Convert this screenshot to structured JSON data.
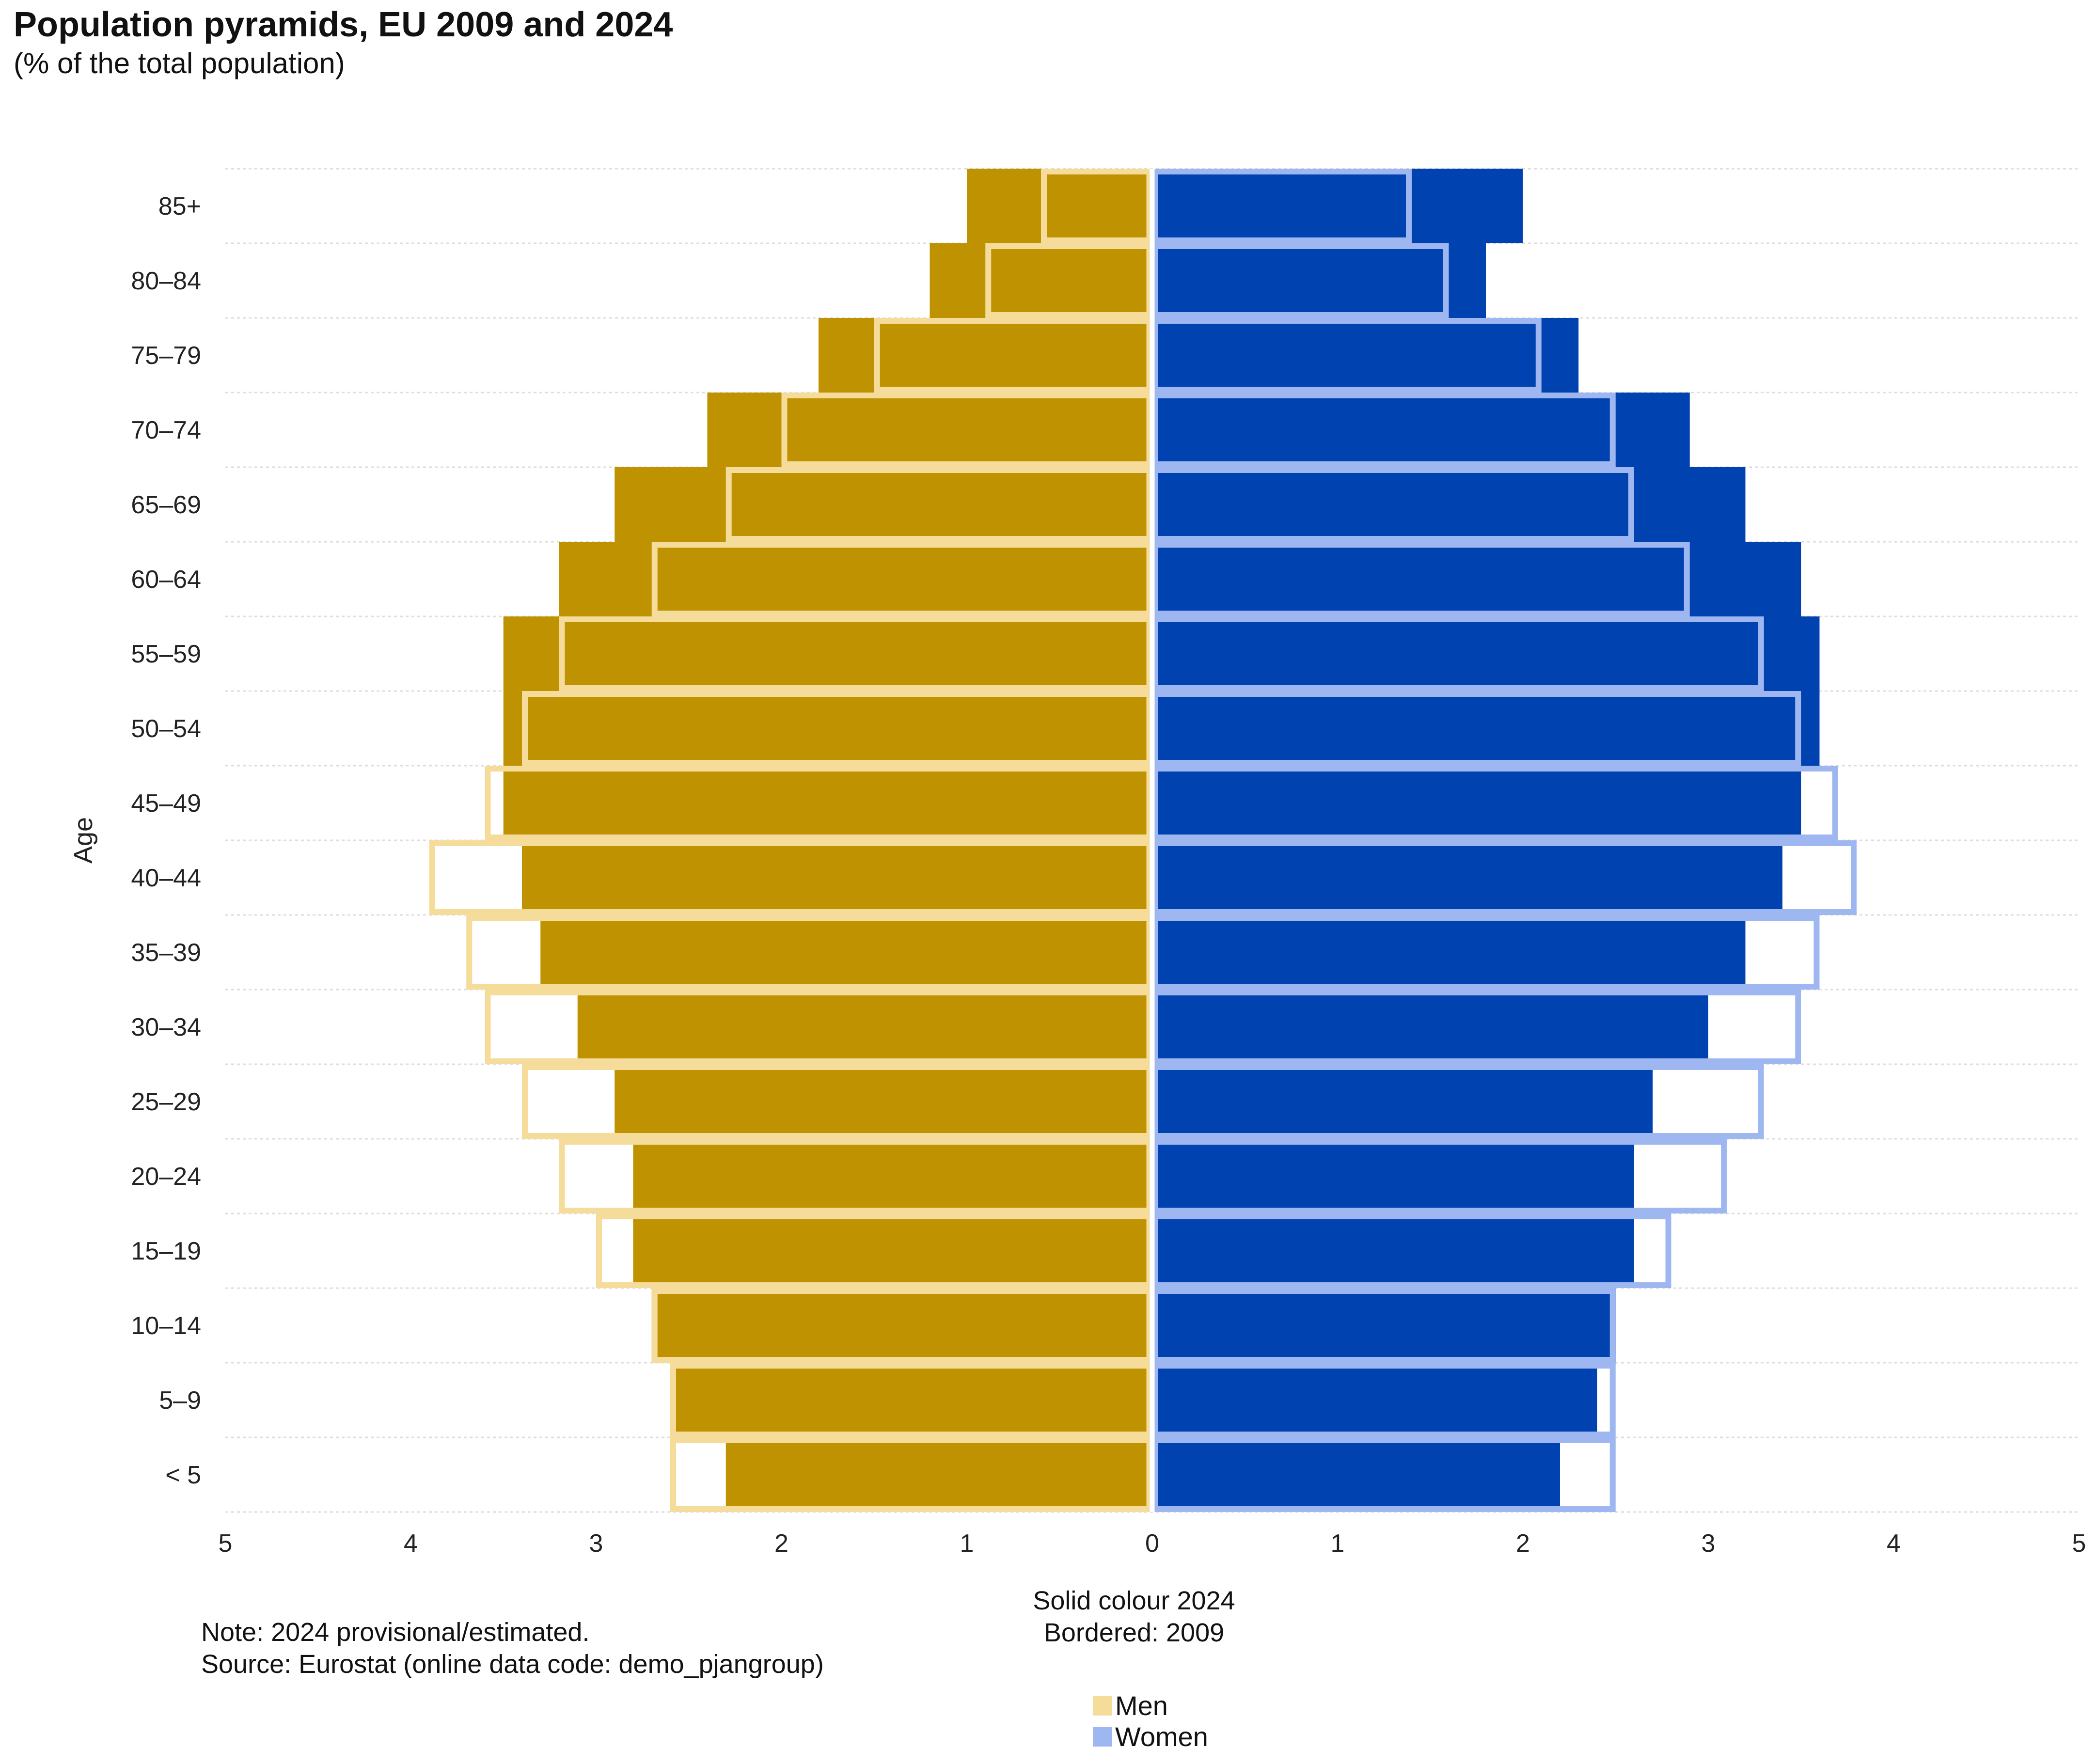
{
  "title": "Population pyramids, EU 2009 and 2024",
  "subtitle": "(% of the total population)",
  "caption": {
    "line1": "Solid colour 2024",
    "line2": "Bordered: 2009"
  },
  "note": {
    "line1": "Note: 2024 provisional/estimated.",
    "line2": "Source: Eurostat (online data code: demo_pjangroup)"
  },
  "legend": {
    "men": "Men",
    "women": "Women"
  },
  "colors": {
    "men_2024": "#BE9200",
    "men_2009": "#F6DC9A",
    "women_2024": "#0042AF",
    "women_2009": "#9FB7F0",
    "grid": "#DDDDDD"
  },
  "chart_data": {
    "type": "bar",
    "orientation": "horizontal-pyramid",
    "title": "Population pyramids, EU 2009 and 2024",
    "subtitle": "(% of the total population)",
    "ylabel": "Age",
    "xlabel": "",
    "xlim": [
      -5,
      5
    ],
    "xticks": [
      -5,
      -4,
      -3,
      -2,
      -1,
      0,
      1,
      2,
      3,
      4,
      5
    ],
    "xtick_labels": [
      "5",
      "4",
      "3",
      "2",
      "1",
      "0",
      "1",
      "2",
      "3",
      "4",
      "5"
    ],
    "categories": [
      "85+",
      "80–84",
      "75–79",
      "70–74",
      "65–69",
      "60–64",
      "55–59",
      "50–54",
      "45–49",
      "40–44",
      "35–39",
      "30–34",
      "25–29",
      "20–24",
      "15–19",
      "10–14",
      "5–9",
      "< 5"
    ],
    "series": [
      {
        "name": "Men 2024",
        "style": "solid",
        "values": [
          1.0,
          1.2,
          1.8,
          2.4,
          2.9,
          3.2,
          3.5,
          3.5,
          3.5,
          3.4,
          3.3,
          3.1,
          2.9,
          2.8,
          2.8,
          2.7,
          2.6,
          2.3
        ]
      },
      {
        "name": "Men 2009",
        "style": "bordered",
        "values": [
          0.6,
          0.9,
          1.5,
          2.0,
          2.3,
          2.7,
          3.2,
          3.4,
          3.6,
          3.9,
          3.7,
          3.6,
          3.4,
          3.2,
          3.0,
          2.7,
          2.6,
          2.6
        ]
      },
      {
        "name": "Women 2024",
        "style": "solid",
        "values": [
          2.0,
          1.8,
          2.3,
          2.9,
          3.2,
          3.5,
          3.6,
          3.6,
          3.5,
          3.4,
          3.2,
          3.0,
          2.7,
          2.6,
          2.6,
          2.5,
          2.4,
          2.2
        ]
      },
      {
        "name": "Women 2009",
        "style": "bordered",
        "values": [
          1.4,
          1.6,
          2.1,
          2.5,
          2.6,
          2.9,
          3.3,
          3.5,
          3.7,
          3.8,
          3.6,
          3.5,
          3.3,
          3.1,
          2.8,
          2.5,
          2.5,
          2.5
        ]
      }
    ]
  }
}
